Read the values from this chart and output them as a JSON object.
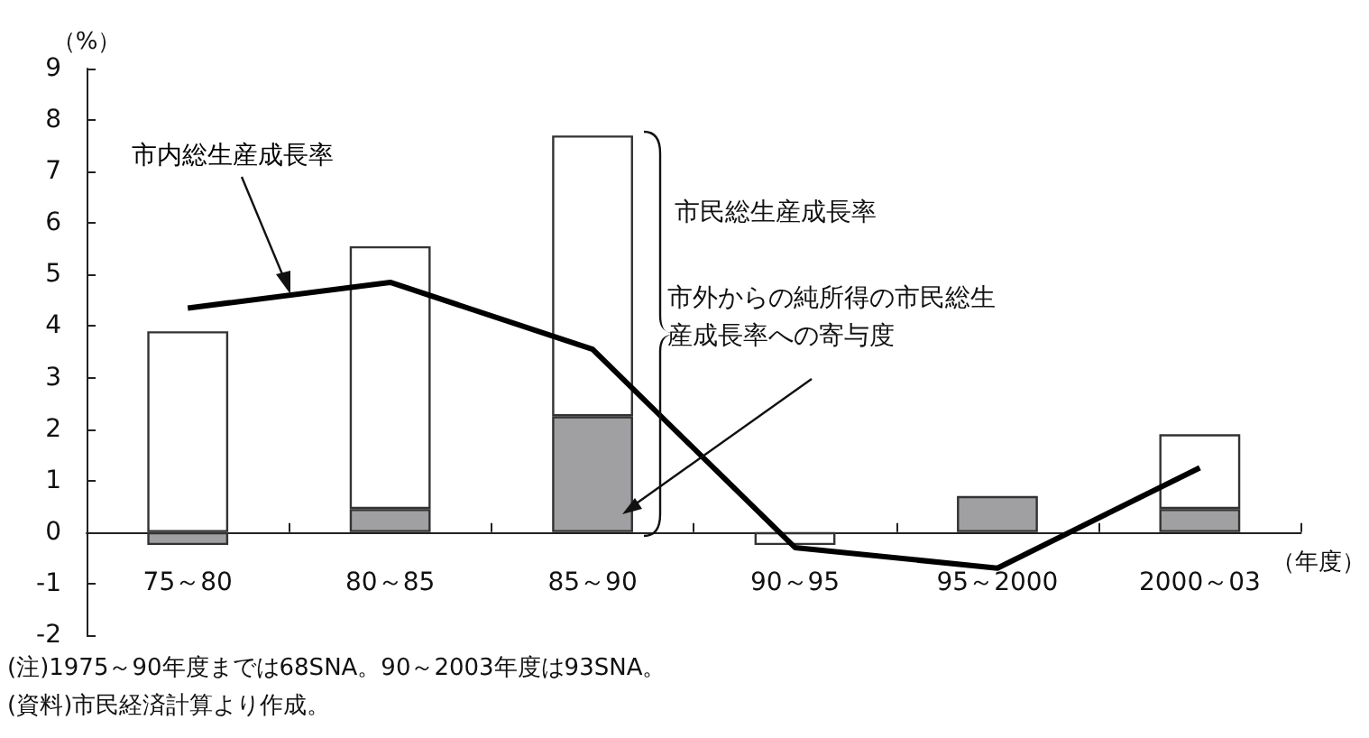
{
  "chart_data": {
    "type": "bar",
    "stacked": true,
    "ylabel": "（%）",
    "xlabel": "（年度）",
    "categories": [
      "75～80",
      "80～85",
      "85～90",
      "90～95",
      "95～2000",
      "2000～03"
    ],
    "series": [
      {
        "name": "市外からの純所得の市民総生産成長率への寄与度",
        "color": "#a0a0a2",
        "values": [
          -0.25,
          0.45,
          2.25,
          null,
          0.7,
          0.45
        ]
      },
      {
        "color": "#ffffff",
        "values": [
          3.9,
          5.1,
          5.45,
          -0.25,
          null,
          1.45
        ]
      },
      {
        "name": "市内総生産成長率",
        "type": "line",
        "color": "#000000",
        "values": [
          4.35,
          4.85,
          3.55,
          -0.3,
          -0.7,
          1.25
        ]
      }
    ],
    "ylim": [
      -2,
      9
    ],
    "yticks": [
      -2,
      -1,
      0,
      1,
      2,
      3,
      4,
      5,
      6,
      7,
      8,
      9
    ],
    "grid": false,
    "legend": false,
    "marker": "none",
    "annotations": [
      "市民総生産成長率",
      "(注)1975～90年度までは68SNA。90～2003年度は93SNA。",
      "(資料)市民経済計算より作成。"
    ]
  }
}
